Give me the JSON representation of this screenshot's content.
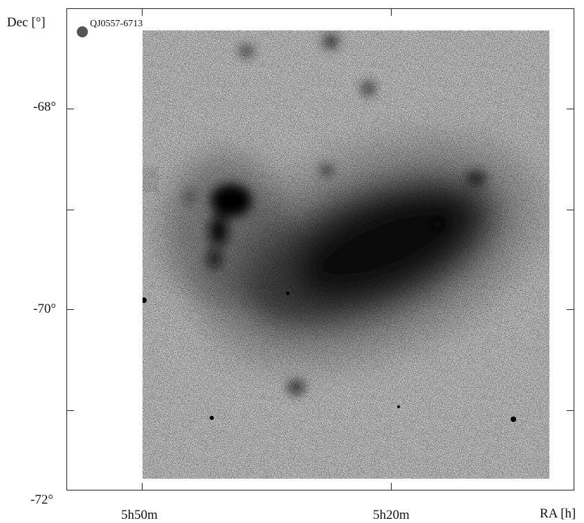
{
  "axes": {
    "y_title": "Dec [°]",
    "x_title": "RA [h]",
    "y_ticks": [
      "-68°",
      "-70°",
      "-72°"
    ],
    "x_ticks": [
      "5h50m",
      "5h20m"
    ]
  },
  "marker": {
    "label": "QJ0557-6713",
    "color": "#555555"
  },
  "image": {
    "subject": "inverted grayscale sky survey mosaic",
    "colors": {
      "background": "#f2f2f2",
      "dense": "#0a0a0a"
    }
  }
}
